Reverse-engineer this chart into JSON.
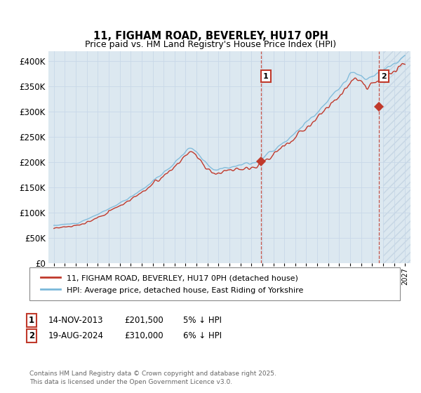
{
  "title": "11, FIGHAM ROAD, BEVERLEY, HU17 0PH",
  "subtitle": "Price paid vs. HM Land Registry's House Price Index (HPI)",
  "ylim": [
    0,
    420000
  ],
  "yticks": [
    0,
    50000,
    100000,
    150000,
    200000,
    250000,
    300000,
    350000,
    400000
  ],
  "ytick_labels": [
    "£0",
    "£50K",
    "£100K",
    "£150K",
    "£200K",
    "£250K",
    "£300K",
    "£350K",
    "£400K"
  ],
  "xlim_start": 1994.5,
  "xlim_end": 2027.5,
  "xtick_years": [
    1995,
    1996,
    1997,
    1998,
    1999,
    2000,
    2001,
    2002,
    2003,
    2004,
    2005,
    2006,
    2007,
    2008,
    2009,
    2010,
    2011,
    2012,
    2013,
    2014,
    2015,
    2016,
    2017,
    2018,
    2019,
    2020,
    2021,
    2022,
    2023,
    2024,
    2025,
    2026,
    2027
  ],
  "hpi_color": "#7ab8d9",
  "price_color": "#c0392b",
  "sale1_date": 2013.88,
  "sale1_price": 201500,
  "sale1_label": "1",
  "sale2_date": 2024.63,
  "sale2_price": 310000,
  "sale2_label": "2",
  "grid_color": "#c8d8e8",
  "bg_color": "#dce8f0",
  "future_start": 2025.0,
  "legend1": "11, FIGHAM ROAD, BEVERLEY, HU17 0PH (detached house)",
  "legend2": "HPI: Average price, detached house, East Riding of Yorkshire",
  "ann1_date": "14-NOV-2013",
  "ann1_price": "£201,500",
  "ann1_note": "5% ↓ HPI",
  "ann2_date": "19-AUG-2024",
  "ann2_price": "£310,000",
  "ann2_note": "6% ↓ HPI",
  "footer": "Contains HM Land Registry data © Crown copyright and database right 2025.\nThis data is licensed under the Open Government Licence v3.0."
}
